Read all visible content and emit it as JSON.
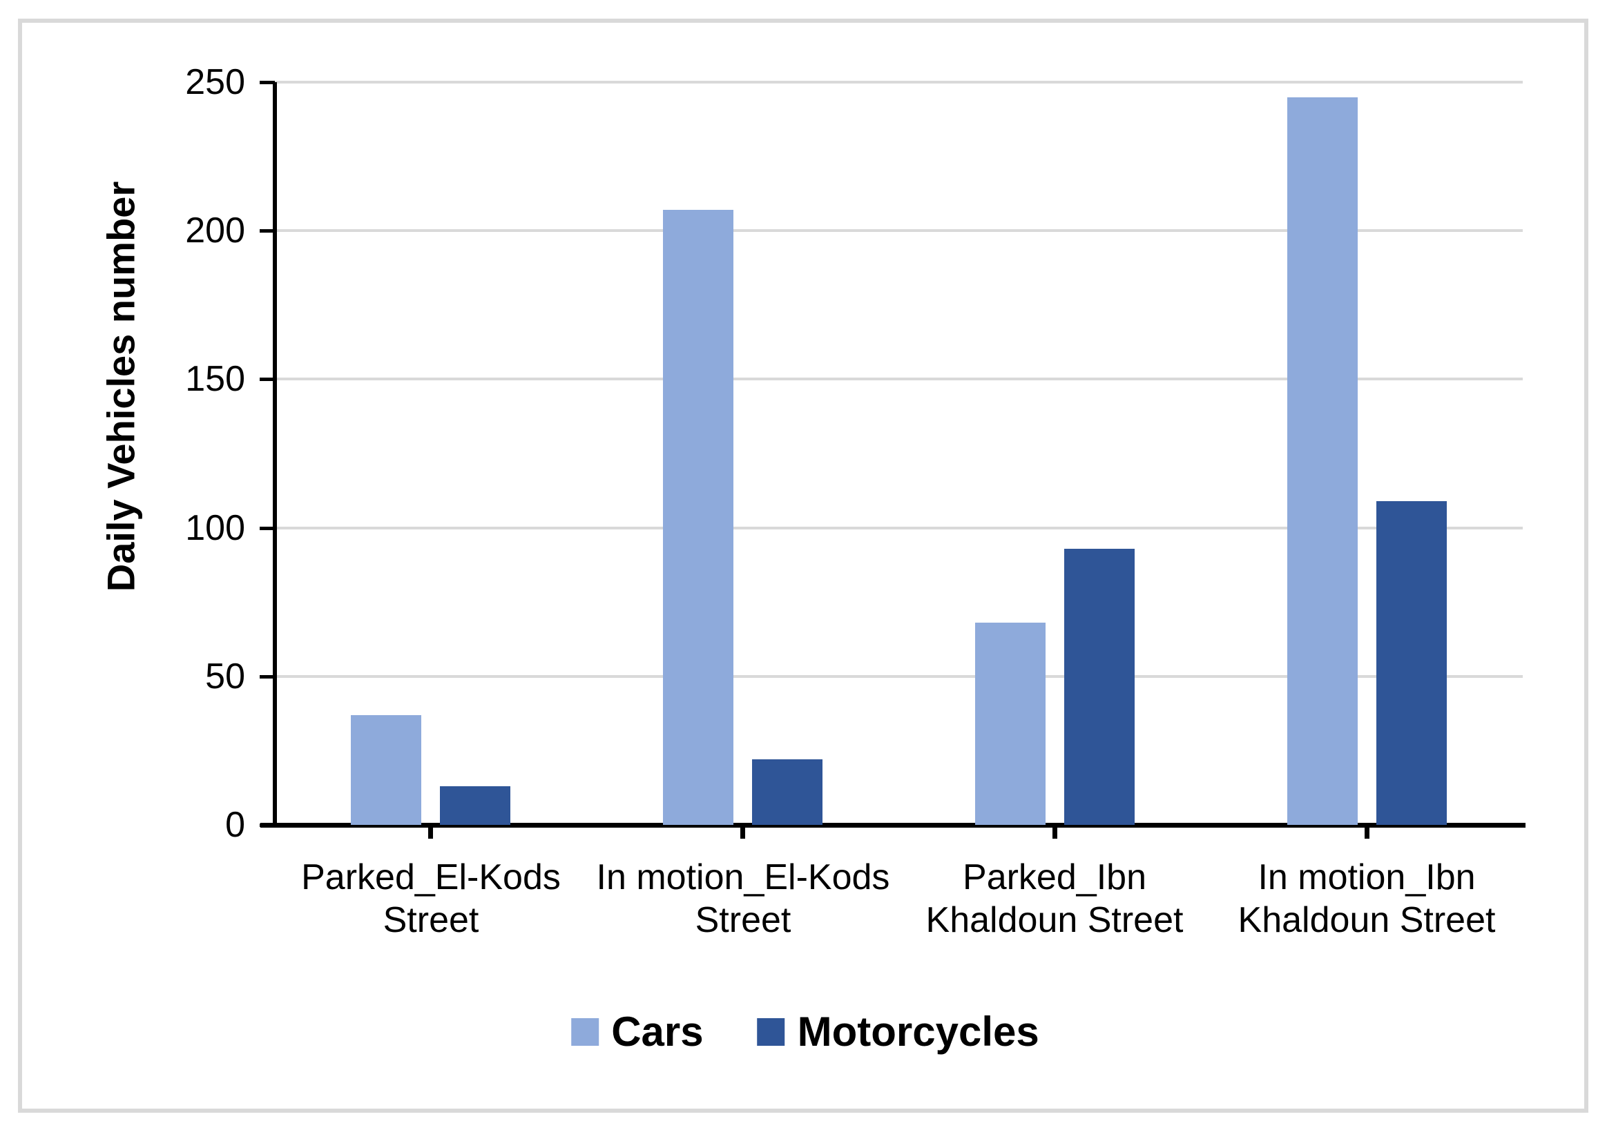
{
  "chart_data": {
    "type": "bar",
    "title": "",
    "ylabel": "Daily Vehicles number",
    "xlabel": "",
    "ylim": [
      0,
      250
    ],
    "yticks": [
      0,
      50,
      100,
      150,
      200,
      250
    ],
    "grid": "horizontal",
    "legend_position": "bottom",
    "categories": [
      "Parked_El-Kods Street",
      "In motion_El-Kods Street",
      "Parked_Ibn Khaldoun Street",
      "In motion_Ibn Khaldoun Street"
    ],
    "category_lines": [
      [
        "Parked_El-Kods",
        "Street"
      ],
      [
        "In motion_El-Kods",
        "Street"
      ],
      [
        "Parked_Ibn",
        "Khaldoun Street"
      ],
      [
        "In motion_Ibn",
        "Khaldoun Street"
      ]
    ],
    "series": [
      {
        "name": "Cars",
        "color": "#8EAADB",
        "values": [
          37,
          207,
          68,
          245
        ]
      },
      {
        "name": "Motorcycles",
        "color": "#2F5597",
        "values": [
          13,
          22,
          93,
          109
        ]
      }
    ]
  },
  "colors": {
    "gridline": "#D9D9D9",
    "axis": "#000000",
    "frame_border": "#D9D9D9",
    "background": "#FFFFFF"
  }
}
